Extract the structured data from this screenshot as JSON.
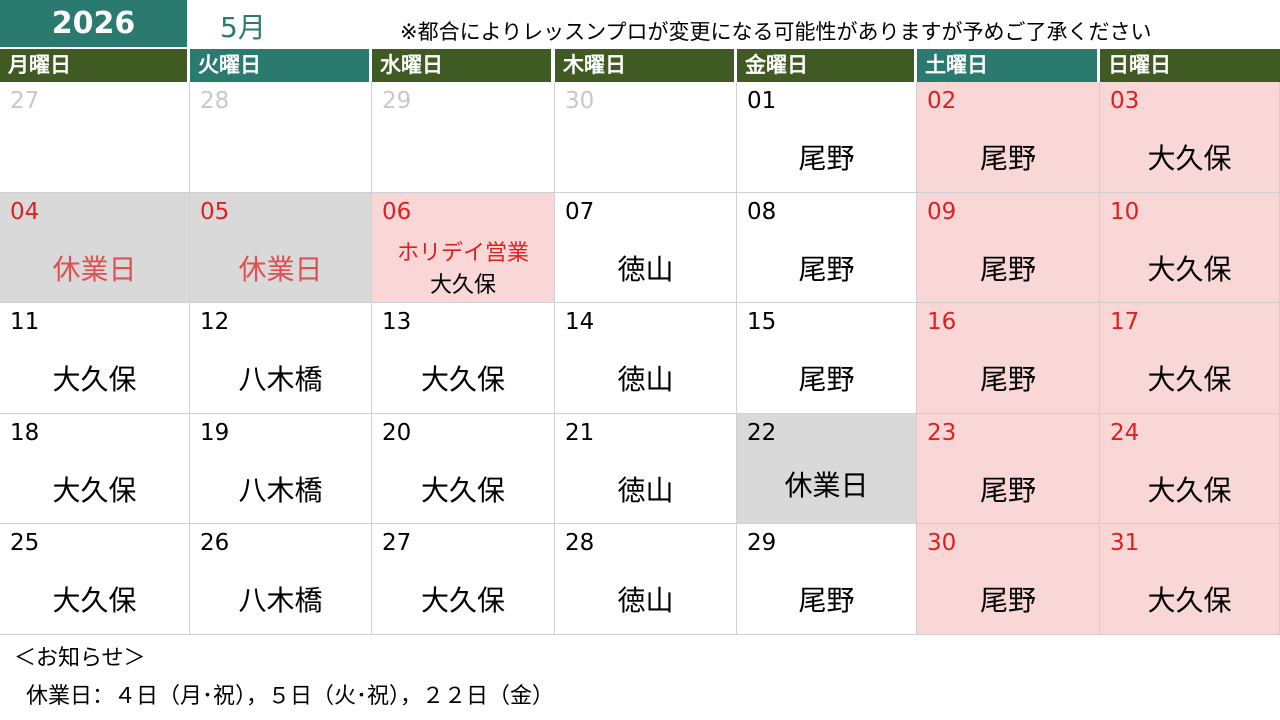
{
  "header": {
    "year": "2026",
    "month": "5月",
    "notice": "※都合によりレッスンプロが変更になる可能性がありますが予めご了承ください"
  },
  "weekdays": [
    "月曜日",
    "火曜日",
    "水曜日",
    "木曜日",
    "金曜日",
    "土曜日",
    "日曜日"
  ],
  "weeks": [
    [
      {
        "date": "27",
        "place": "",
        "style": "muted"
      },
      {
        "date": "28",
        "place": "",
        "style": "muted"
      },
      {
        "date": "29",
        "place": "",
        "style": "muted"
      },
      {
        "date": "30",
        "place": "",
        "style": "muted"
      },
      {
        "date": "01",
        "place": "尾野",
        "style": "normal"
      },
      {
        "date": "02",
        "place": "尾野",
        "style": "weekend"
      },
      {
        "date": "03",
        "place": "大久保",
        "style": "weekend"
      }
    ],
    [
      {
        "date": "04",
        "place": "休業日",
        "style": "closed-red"
      },
      {
        "date": "05",
        "place": "休業日",
        "style": "closed-red"
      },
      {
        "date": "06",
        "place": "ホリデイ営業",
        "place2": "大久保",
        "style": "holiday"
      },
      {
        "date": "07",
        "place": "徳山",
        "style": "normal"
      },
      {
        "date": "08",
        "place": "尾野",
        "style": "normal"
      },
      {
        "date": "09",
        "place": "尾野",
        "style": "weekend"
      },
      {
        "date": "10",
        "place": "大久保",
        "style": "weekend"
      }
    ],
    [
      {
        "date": "11",
        "place": "大久保",
        "style": "normal"
      },
      {
        "date": "12",
        "place": "八木橋",
        "style": "normal"
      },
      {
        "date": "13",
        "place": "大久保",
        "style": "normal"
      },
      {
        "date": "14",
        "place": "徳山",
        "style": "normal"
      },
      {
        "date": "15",
        "place": "尾野",
        "style": "normal"
      },
      {
        "date": "16",
        "place": "尾野",
        "style": "weekend"
      },
      {
        "date": "17",
        "place": "大久保",
        "style": "weekend"
      }
    ],
    [
      {
        "date": "18",
        "place": "大久保",
        "style": "normal"
      },
      {
        "date": "19",
        "place": "八木橋",
        "style": "normal"
      },
      {
        "date": "20",
        "place": "大久保",
        "style": "normal"
      },
      {
        "date": "21",
        "place": "徳山",
        "style": "normal"
      },
      {
        "date": "22",
        "place": "休業日",
        "style": "closed"
      },
      {
        "date": "23",
        "place": "尾野",
        "style": "weekend"
      },
      {
        "date": "24",
        "place": "大久保",
        "style": "weekend"
      }
    ],
    [
      {
        "date": "25",
        "place": "大久保",
        "style": "normal"
      },
      {
        "date": "26",
        "place": "八木橋",
        "style": "normal"
      },
      {
        "date": "27",
        "place": "大久保",
        "style": "normal"
      },
      {
        "date": "28",
        "place": "徳山",
        "style": "normal"
      },
      {
        "date": "29",
        "place": "尾野",
        "style": "normal"
      },
      {
        "date": "30",
        "place": "尾野",
        "style": "weekend"
      },
      {
        "date": "31",
        "place": "大久保",
        "style": "weekend"
      }
    ]
  ],
  "footer": {
    "title": "＜お知らせ＞",
    "body": "休業日：４日（月･祝），５日（火･祝），２２日（金）"
  },
  "colors": {
    "teal": "#2a7a6f",
    "olive": "#3f5a22",
    "weekend_bg": "#f9d7d7",
    "closed_bg": "#d9d9d9",
    "red": "#e02020"
  }
}
